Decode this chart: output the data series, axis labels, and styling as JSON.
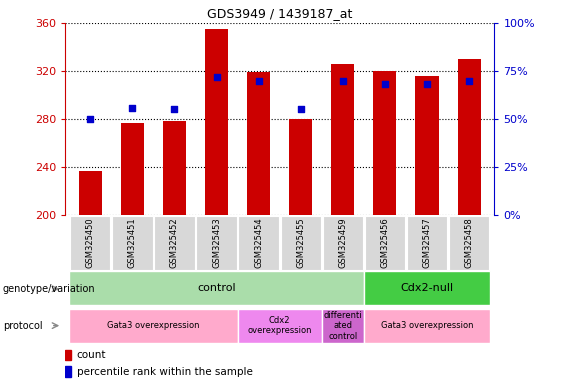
{
  "title": "GDS3949 / 1439187_at",
  "samples": [
    "GSM325450",
    "GSM325451",
    "GSM325452",
    "GSM325453",
    "GSM325454",
    "GSM325455",
    "GSM325459",
    "GSM325456",
    "GSM325457",
    "GSM325458"
  ],
  "counts": [
    237,
    277,
    278,
    355,
    319,
    280,
    326,
    320,
    316,
    330
  ],
  "percentile_ranks": [
    50,
    56,
    55,
    72,
    70,
    55,
    70,
    68,
    68,
    70
  ],
  "ylim_left": [
    200,
    360
  ],
  "ylim_right": [
    0,
    100
  ],
  "yticks_left": [
    200,
    240,
    280,
    320,
    360
  ],
  "yticks_right": [
    0,
    25,
    50,
    75,
    100
  ],
  "bar_color": "#cc0000",
  "dot_color": "#0000cc",
  "bar_bottom": 200,
  "genotype_groups": [
    {
      "label": "control",
      "start": 0,
      "end": 7,
      "color": "#aaddaa"
    },
    {
      "label": "Cdx2-null",
      "start": 7,
      "end": 10,
      "color": "#44cc44"
    }
  ],
  "protocol_groups": [
    {
      "label": "Gata3 overexpression",
      "start": 0,
      "end": 4,
      "color": "#ffaacc"
    },
    {
      "label": "Cdx2\noverexpression",
      "start": 4,
      "end": 6,
      "color": "#ee88ee"
    },
    {
      "label": "differenti\nated\ncontrol",
      "start": 6,
      "end": 7,
      "color": "#cc66cc"
    },
    {
      "label": "Gata3 overexpression",
      "start": 7,
      "end": 10,
      "color": "#ffaacc"
    }
  ],
  "legend_items": [
    {
      "label": "count",
      "color": "#cc0000"
    },
    {
      "label": "percentile rank within the sample",
      "color": "#0000cc"
    }
  ],
  "left_label_color": "#cc0000",
  "right_label_color": "#0000cc"
}
